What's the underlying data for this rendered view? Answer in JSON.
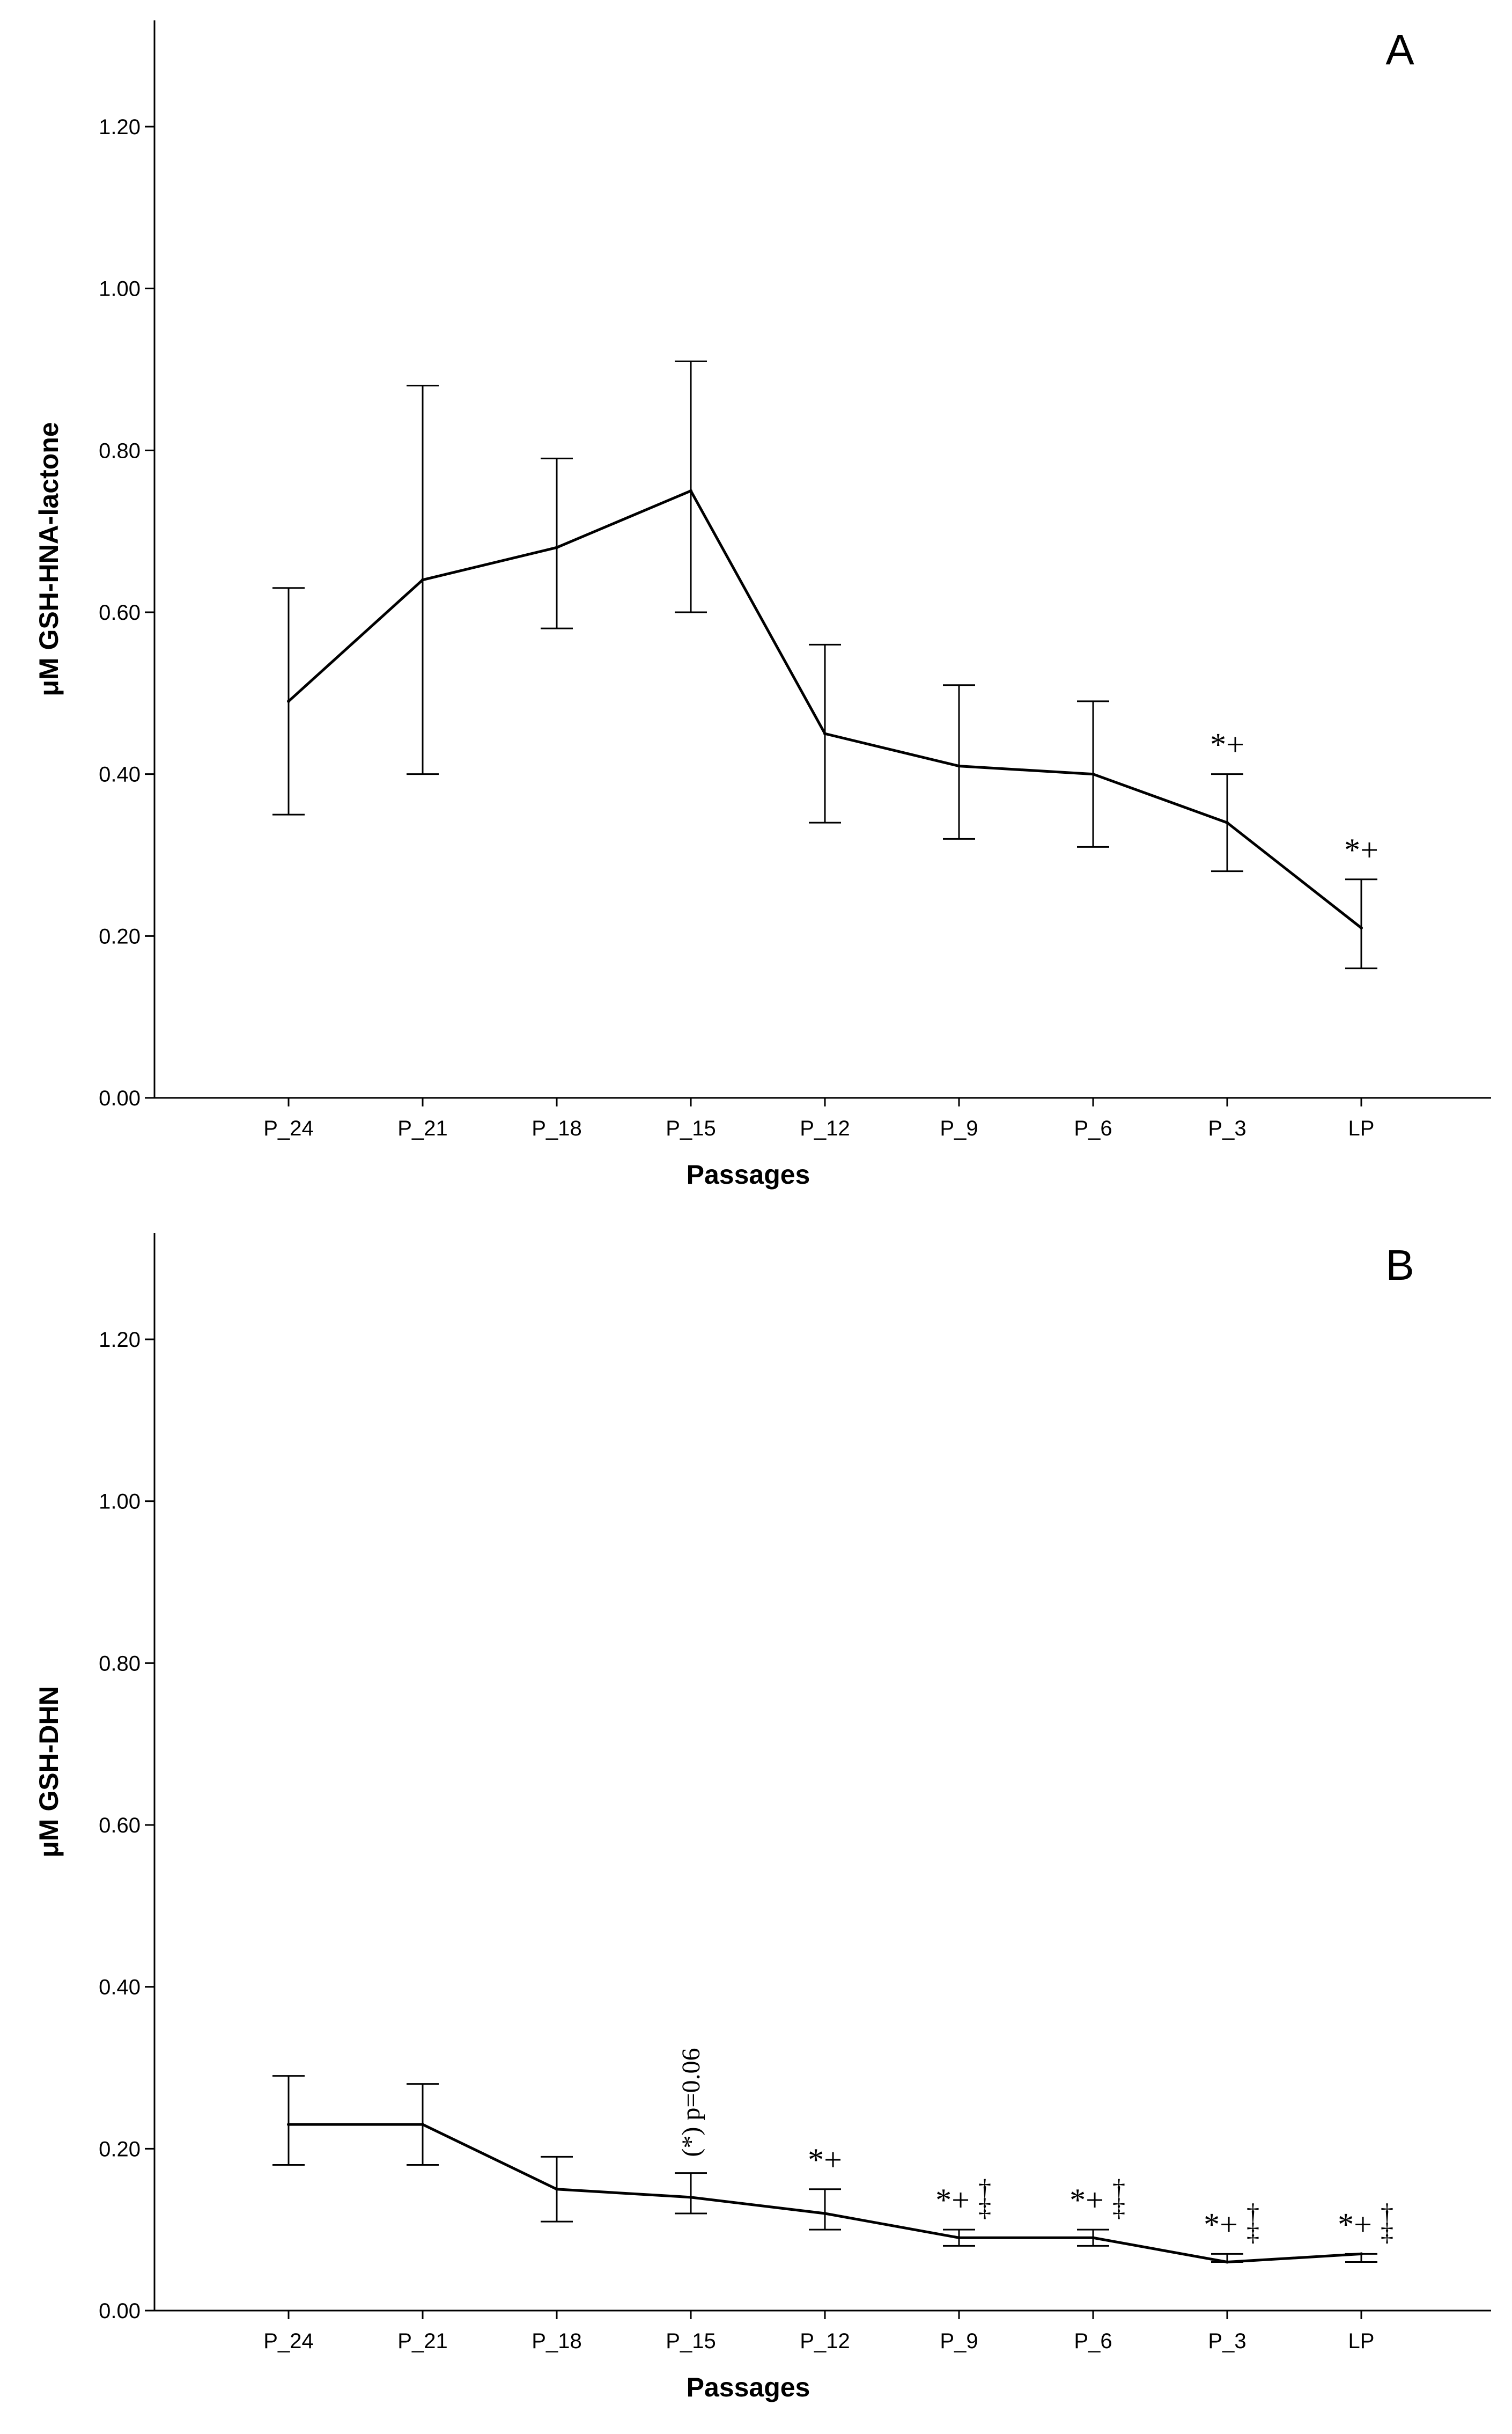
{
  "chart_data": [
    {
      "type": "line",
      "panel_label": "A",
      "title": "",
      "xlabel": "Passages",
      "ylabel": "μM GSH-HNA-lactone",
      "ylim": [
        0,
        1.3
      ],
      "yticks": [
        "0.00",
        "0.20",
        "0.40",
        "0.60",
        "0.80",
        "1.00",
        "1.20"
      ],
      "categories": [
        "P_24",
        "P_21",
        "P_18",
        "P_15",
        "P_12",
        "P_9",
        "P_6",
        "P_3",
        "LP"
      ],
      "values": [
        0.49,
        0.64,
        0.68,
        0.75,
        0.45,
        0.41,
        0.4,
        0.34,
        0.21
      ],
      "error_low": [
        0.35,
        0.4,
        0.58,
        0.6,
        0.34,
        0.32,
        0.31,
        0.28,
        0.16
      ],
      "error_high": [
        0.63,
        0.88,
        0.79,
        0.91,
        0.56,
        0.51,
        0.49,
        0.4,
        0.27
      ],
      "annotations": [
        {
          "category": "P_3",
          "text": "*+"
        },
        {
          "category": "LP",
          "text": "*+"
        }
      ]
    },
    {
      "type": "line",
      "panel_label": "B",
      "title": "",
      "xlabel": "Passages",
      "ylabel": "μM GSH-DHN",
      "ylim": [
        0,
        1.3
      ],
      "yticks": [
        "0.00",
        "0.20",
        "0.40",
        "0.60",
        "0.80",
        "1.00",
        "1.20"
      ],
      "categories": [
        "P_24",
        "P_21",
        "P_18",
        "P_15",
        "P_12",
        "P_9",
        "P_6",
        "P_3",
        "LP"
      ],
      "values": [
        0.23,
        0.23,
        0.15,
        0.14,
        0.12,
        0.09,
        0.09,
        0.06,
        0.07
      ],
      "error_low": [
        0.18,
        0.18,
        0.11,
        0.12,
        0.1,
        0.08,
        0.08,
        0.06,
        0.06
      ],
      "error_high": [
        0.29,
        0.28,
        0.19,
        0.17,
        0.15,
        0.1,
        0.1,
        0.07,
        0.07
      ],
      "annotations": [
        {
          "category": "P_15",
          "text": "(*) p=0.06",
          "rotated": true
        },
        {
          "category": "P_12",
          "text": "*+"
        },
        {
          "category": "P_9",
          "text": "*+",
          "stack": "†‡"
        },
        {
          "category": "P_6",
          "text": "*+",
          "stack": "†‡"
        },
        {
          "category": "P_3",
          "text": "*+",
          "stack": "†‡"
        },
        {
          "category": "LP",
          "text": "*+",
          "stack": "†‡"
        }
      ]
    }
  ]
}
